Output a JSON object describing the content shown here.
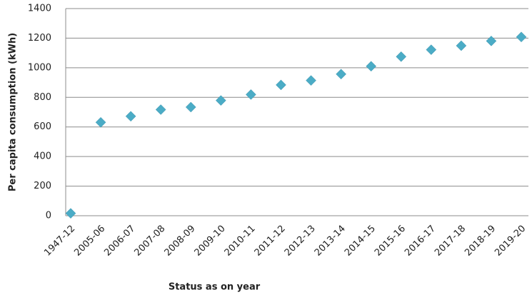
{
  "chart_data": {
    "type": "scatter",
    "x_label": "Status as on year",
    "y_label": "Per capita consumption (kWh)",
    "categories": [
      "1947-12",
      "2005-06",
      "2006-07",
      "2007-08",
      "2008-09",
      "2009-10",
      "2010-11",
      "2011-12",
      "2012-13",
      "2013-14",
      "2014-15",
      "2015-16",
      "2016-17",
      "2017-18",
      "2018-19",
      "2019-20"
    ],
    "values": [
      16,
      631,
      672,
      717,
      734,
      779,
      819,
      884,
      914,
      957,
      1010,
      1075,
      1122,
      1149,
      1181,
      1208
    ],
    "color": "#4bacc6",
    "ylim": [
      0,
      1400
    ],
    "yticks": [
      0,
      200,
      400,
      600,
      800,
      1000,
      1200,
      1400
    ],
    "grid": true
  }
}
